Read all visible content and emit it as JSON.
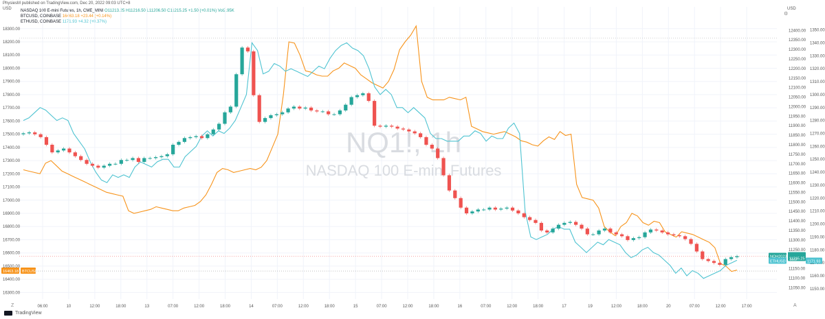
{
  "header": {
    "published": "PhysiesM published on TradingView.com, Dec 20, 2022 09:03 UTC+8",
    "currency_left": "USD",
    "currency_right": "USD",
    "symbol_line": "NASDAQ 100 E-mini Futures, 1h, CME_MINI",
    "ohlc": "O11213.25  H11216.50  L11206.50  C11215.25  +1.50 (+0.01%)  Vol2.95K",
    "btc_line_name": "BTCUSD, COINBASE",
    "btc_line_value": "16463.18  +23.44 (+0.14%)",
    "eth_line_name": "ETHUSD, COINBASE",
    "eth_line_value": "1171.93  +4.32 (+0.37%)",
    "watermark_symbol": "NQ1!, 1h",
    "watermark_name": "NASDAQ 100 E-mini Futures"
  },
  "footer": {
    "brand": "TradingView"
  },
  "colors": {
    "up": "#26a69a",
    "down": "#ef5350",
    "btc": "#f7931a",
    "eth": "#4ec3d1",
    "nq_tag": "#26a69a"
  },
  "chart_data": {
    "type": "line",
    "title": "NASDAQ 100 E-mini Futures, 1h",
    "x_tick_labels": [
      "06:00",
      "10",
      "12:00",
      "18:00",
      "13",
      "07:00",
      "12:00",
      "18:00",
      "14",
      "07:00",
      "12:00",
      "18:00",
      "15",
      "07:00",
      "12:00",
      "18:00",
      "16",
      "07:00",
      "12:00",
      "18:00",
      "17",
      "19",
      "12:00",
      "18:00",
      "20",
      "07:00",
      "12:00",
      "17:00"
    ],
    "left_axis_ticks": [
      18300,
      18200,
      18100,
      18000,
      17900,
      17800,
      17700,
      17600,
      17500,
      17400,
      17300,
      17200,
      17100,
      17000,
      16900,
      16800,
      16700,
      16600,
      16500,
      16400,
      16300
    ],
    "mid_axis_ticks": [
      12400,
      12350,
      12300,
      12250,
      12200,
      12150,
      12100,
      12050,
      12000,
      11950,
      11900,
      11850,
      11800,
      11750,
      11700,
      11650,
      11600,
      11550,
      11500,
      11450,
      11400,
      11350,
      11300,
      11250,
      11200,
      11150,
      11100,
      11050
    ],
    "right_axis_ticks": [
      1350,
      1340,
      1330,
      1320,
      1310,
      1300,
      1290,
      1280,
      1270,
      1260,
      1250,
      1240,
      1230,
      1220,
      1210,
      1200,
      1190,
      1180,
      1170,
      1160,
      1150
    ],
    "ylim_btc": [
      16250,
      18330
    ],
    "ylim_nq": [
      10990,
      12430
    ],
    "ylim_eth": [
      1142,
      1354
    ],
    "price_tags": {
      "btc": "16463.18",
      "btc_name": "BTCUSD",
      "nq": "11215.25",
      "nq_name": "NQH2023",
      "nq_countdown": "56:57",
      "eth": "1171.93",
      "eth_name": "ETHUSD"
    },
    "series": [
      {
        "name": "BTCUSD",
        "axis": "left",
        "values": [
          17230,
          17220,
          17210,
          17200,
          17280,
          17300,
          17260,
          17220,
          17200,
          17180,
          17160,
          17140,
          17120,
          17100,
          17080,
          17060,
          17050,
          17040,
          17030,
          16920,
          16900,
          16910,
          16920,
          16930,
          16950,
          16940,
          16930,
          16920,
          16920,
          16940,
          16950,
          16960,
          16990,
          17040,
          17120,
          17210,
          17240,
          17230,
          17210,
          17220,
          17230,
          17240,
          17230,
          17250,
          17300,
          17400,
          17500,
          17800,
          18200,
          18190,
          18100,
          17980,
          17970,
          17950,
          17940,
          17940,
          17980,
          18000,
          18040,
          18020,
          18000,
          17950,
          17920,
          17890,
          17870,
          17850,
          17900,
          17990,
          18140,
          18200,
          18250,
          18320,
          17900,
          17780,
          17760,
          17760,
          17760,
          17780,
          17770,
          17760,
          17780,
          17560,
          17540,
          17520,
          17510,
          17500,
          17510,
          17520,
          17500,
          17480,
          17450,
          17440,
          17420,
          17410,
          17450,
          17480,
          17460,
          17520,
          17490,
          17500,
          17120,
          17020,
          17010,
          17000,
          16940,
          16800,
          16760,
          16730,
          16800,
          16830,
          16900,
          16880,
          16830,
          16810,
          16840,
          16830,
          16760,
          16740,
          16720,
          16760,
          16750,
          16740,
          16720,
          16700,
          16680,
          16640,
          16520,
          16500,
          16460,
          16470
        ]
      },
      {
        "name": "ETHUSD",
        "axis": "right",
        "values": [
          1280,
          1282,
          1286,
          1290,
          1288,
          1284,
          1280,
          1282,
          1280,
          1270,
          1264,
          1258,
          1248,
          1240,
          1234,
          1232,
          1238,
          1236,
          1238,
          1236,
          1244,
          1248,
          1246,
          1244,
          1248,
          1250,
          1250,
          1244,
          1244,
          1252,
          1256,
          1260,
          1268,
          1272,
          1268,
          1272,
          1270,
          1274,
          1280,
          1290,
          1300,
          1340,
          1334,
          1316,
          1318,
          1324,
          1322,
          1318,
          1320,
          1318,
          1316,
          1314,
          1318,
          1322,
          1320,
          1328,
          1334,
          1338,
          1340,
          1336,
          1334,
          1330,
          1320,
          1306,
          1300,
          1304,
          1300,
          1290,
          1290,
          1286,
          1290,
          1286,
          1282,
          1270,
          1266,
          1266,
          1264,
          1264,
          1264,
          1268,
          1268,
          1272,
          1270,
          1264,
          1268,
          1266,
          1266,
          1274,
          1278,
          1270,
          1210,
          1190,
          1188,
          1190,
          1192,
          1196,
          1198,
          1196,
          1196,
          1186,
          1182,
          1178,
          1182,
          1186,
          1184,
          1188,
          1186,
          1184,
          1178,
          1174,
          1176,
          1180,
          1182,
          1178,
          1176,
          1172,
          1168,
          1162,
          1166,
          1160,
          1164,
          1162,
          1158,
          1160,
          1162,
          1164,
          1168,
          1170,
          1172
        ]
      },
      {
        "name": "NQ1! close",
        "axis": "mid",
        "values": [
          11860,
          11865,
          11855,
          11840,
          11800,
          11760,
          11770,
          11780,
          11760,
          11740,
          11720,
          11700,
          11690,
          11680,
          11690,
          11700,
          11700,
          11720,
          11720,
          11730,
          11710,
          11730,
          11730,
          11735,
          11740,
          11750,
          11800,
          11815,
          11835,
          11840,
          11845,
          11835,
          11855,
          11880,
          11910,
          11970,
          12000,
          12170,
          12310,
          12290,
          12060,
          11920,
          11940,
          11955,
          11960,
          11970,
          11990,
          12000,
          11990,
          11995,
          11980,
          11975,
          11975,
          11960,
          11960,
          11980,
          12010,
          12050,
          12060,
          12070,
          12030,
          11900,
          11895,
          11900,
          11895,
          11885,
          11880,
          11870,
          11860,
          11840,
          11800,
          11780,
          11730,
          11640,
          11560,
          11520,
          11470,
          11440,
          11450,
          11460,
          11460,
          11470,
          11460,
          11465,
          11470,
          11455,
          11440,
          11420,
          11405,
          11390,
          11350,
          11340,
          11360,
          11380,
          11390,
          11395,
          11380,
          11360,
          11330,
          11330,
          11350,
          11360,
          11340,
          11330,
          11320,
          11300,
          11310,
          11315,
          11340,
          11355,
          11350,
          11340,
          11330,
          11325,
          11320,
          11305,
          11280,
          11240,
          11200,
          11190,
          11180,
          11170,
          11200,
          11210,
          11215
        ]
      }
    ]
  }
}
